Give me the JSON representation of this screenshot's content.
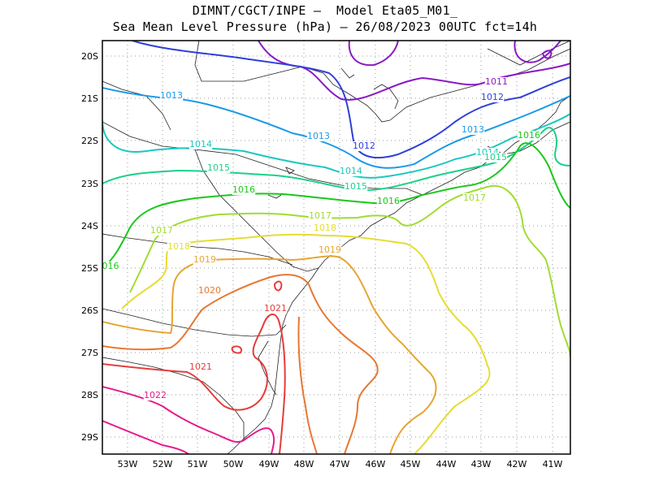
{
  "title": {
    "line1": "DIMNT/CGCT/INPE –  Model Eta05_M01_",
    "line2": "Sea Mean Level Pressure (hPa) – 26/08/2023 00UTC fct=14h"
  },
  "axes": {
    "lat_labels": [
      "20S",
      "21S",
      "22S",
      "23S",
      "24S",
      "25S",
      "26S",
      "27S",
      "28S",
      "29S"
    ],
    "lon_labels": [
      "53W",
      "52W",
      "51W",
      "50W",
      "49W",
      "48W",
      "47W",
      "46W",
      "45W",
      "44W",
      "43W",
      "42W",
      "41W"
    ]
  },
  "isobars": [
    {
      "value": 1011,
      "color": "#8a1ac4"
    },
    {
      "value": 1012,
      "color": "#2f3fd8"
    },
    {
      "value": 1013,
      "color": "#1a9ae8"
    },
    {
      "value": 1014,
      "color": "#1ac8c0"
    },
    {
      "value": 1015,
      "color": "#1ad08a"
    },
    {
      "value": 1016,
      "color": "#1ac81a"
    },
    {
      "value": 1017,
      "color": "#a0dc32"
    },
    {
      "value": 1018,
      "color": "#e6dc32"
    },
    {
      "value": 1019,
      "color": "#e6a532"
    },
    {
      "value": 1020,
      "color": "#e67832"
    },
    {
      "value": 1021,
      "color": "#e63c3c"
    },
    {
      "value": 1022,
      "color": "#e61a8c"
    }
  ],
  "contour_labels": [
    {
      "text": "1011",
      "color": "#8a1ac4"
    },
    {
      "text": "1012",
      "color": "#2f3fd8"
    },
    {
      "text": "1012",
      "color": "#2f3fd8"
    },
    {
      "text": "1013",
      "color": "#1a9ae8"
    },
    {
      "text": "1013",
      "color": "#1a9ae8"
    },
    {
      "text": "1013",
      "color": "#1a9ae8"
    },
    {
      "text": "1014",
      "color": "#1ac8c0"
    },
    {
      "text": "1014",
      "color": "#1ac8c0"
    },
    {
      "text": "1014",
      "color": "#1ac8c0"
    },
    {
      "text": "1015",
      "color": "#1ad08a"
    },
    {
      "text": "1015",
      "color": "#1ad08a"
    },
    {
      "text": "1015",
      "color": "#1ad08a"
    },
    {
      "text": "1016",
      "color": "#1ac81a"
    },
    {
      "text": "1016",
      "color": "#1ac81a"
    },
    {
      "text": "1016",
      "color": "#1ac81a"
    },
    {
      "text": "016",
      "color": "#1ac81a"
    },
    {
      "text": "1017",
      "color": "#a0dc32"
    },
    {
      "text": "1017",
      "color": "#a0dc32"
    },
    {
      "text": "1017",
      "color": "#a0dc32"
    },
    {
      "text": "1018",
      "color": "#e6dc32"
    },
    {
      "text": "1018",
      "color": "#e6dc32"
    },
    {
      "text": "1019",
      "color": "#e6a532"
    },
    {
      "text": "1019",
      "color": "#e6a532"
    },
    {
      "text": "1020",
      "color": "#e67832"
    },
    {
      "text": "1021",
      "color": "#e63c3c"
    },
    {
      "text": "1021",
      "color": "#e63c3c"
    },
    {
      "text": "1022",
      "color": "#e61a8c"
    }
  ]
}
